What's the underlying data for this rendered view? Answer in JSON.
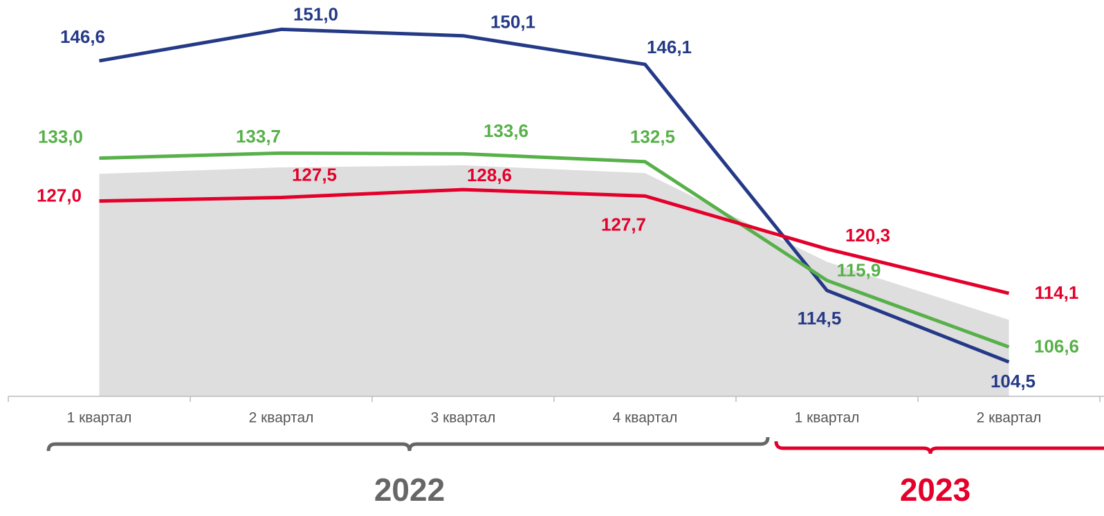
{
  "chart_data": {
    "type": "line",
    "categories": [
      "1 квартал",
      "2 квартал",
      "3 квартал",
      "4 квартал",
      "1 квартал",
      "2 квартал"
    ],
    "groups": [
      {
        "label": "2022",
        "count": 4,
        "color": "#666666"
      },
      {
        "label": "2023",
        "count": 2,
        "color": "#e3002b"
      }
    ],
    "area": {
      "color": "#dedede",
      "values": [
        130.8,
        131.7,
        132.0,
        130.9,
        118.5,
        110.4
      ]
    },
    "series": [
      {
        "name": "blue",
        "color": "#253a87",
        "values": [
          146.6,
          151.0,
          150.1,
          146.1,
          114.5,
          104.5
        ],
        "value_labels": [
          "146,6",
          "151,0",
          "150,1",
          "146,1",
          "114,5",
          "104,5"
        ]
      },
      {
        "name": "green",
        "color": "#58b04a",
        "values": [
          133.0,
          133.7,
          133.6,
          132.5,
          115.9,
          106.6
        ],
        "value_labels": [
          "133,0",
          "133,7",
          "133,6",
          "132,5",
          "115,9",
          "106,6"
        ]
      },
      {
        "name": "red",
        "color": "#e3002b",
        "values": [
          127.0,
          127.5,
          128.6,
          127.7,
          120.3,
          114.1
        ],
        "value_labels": [
          "127,0",
          "127,5",
          "128,6",
          "127,7",
          "120,3",
          "114,1"
        ]
      }
    ],
    "ylim": [
      99.7,
      155.1
    ]
  }
}
